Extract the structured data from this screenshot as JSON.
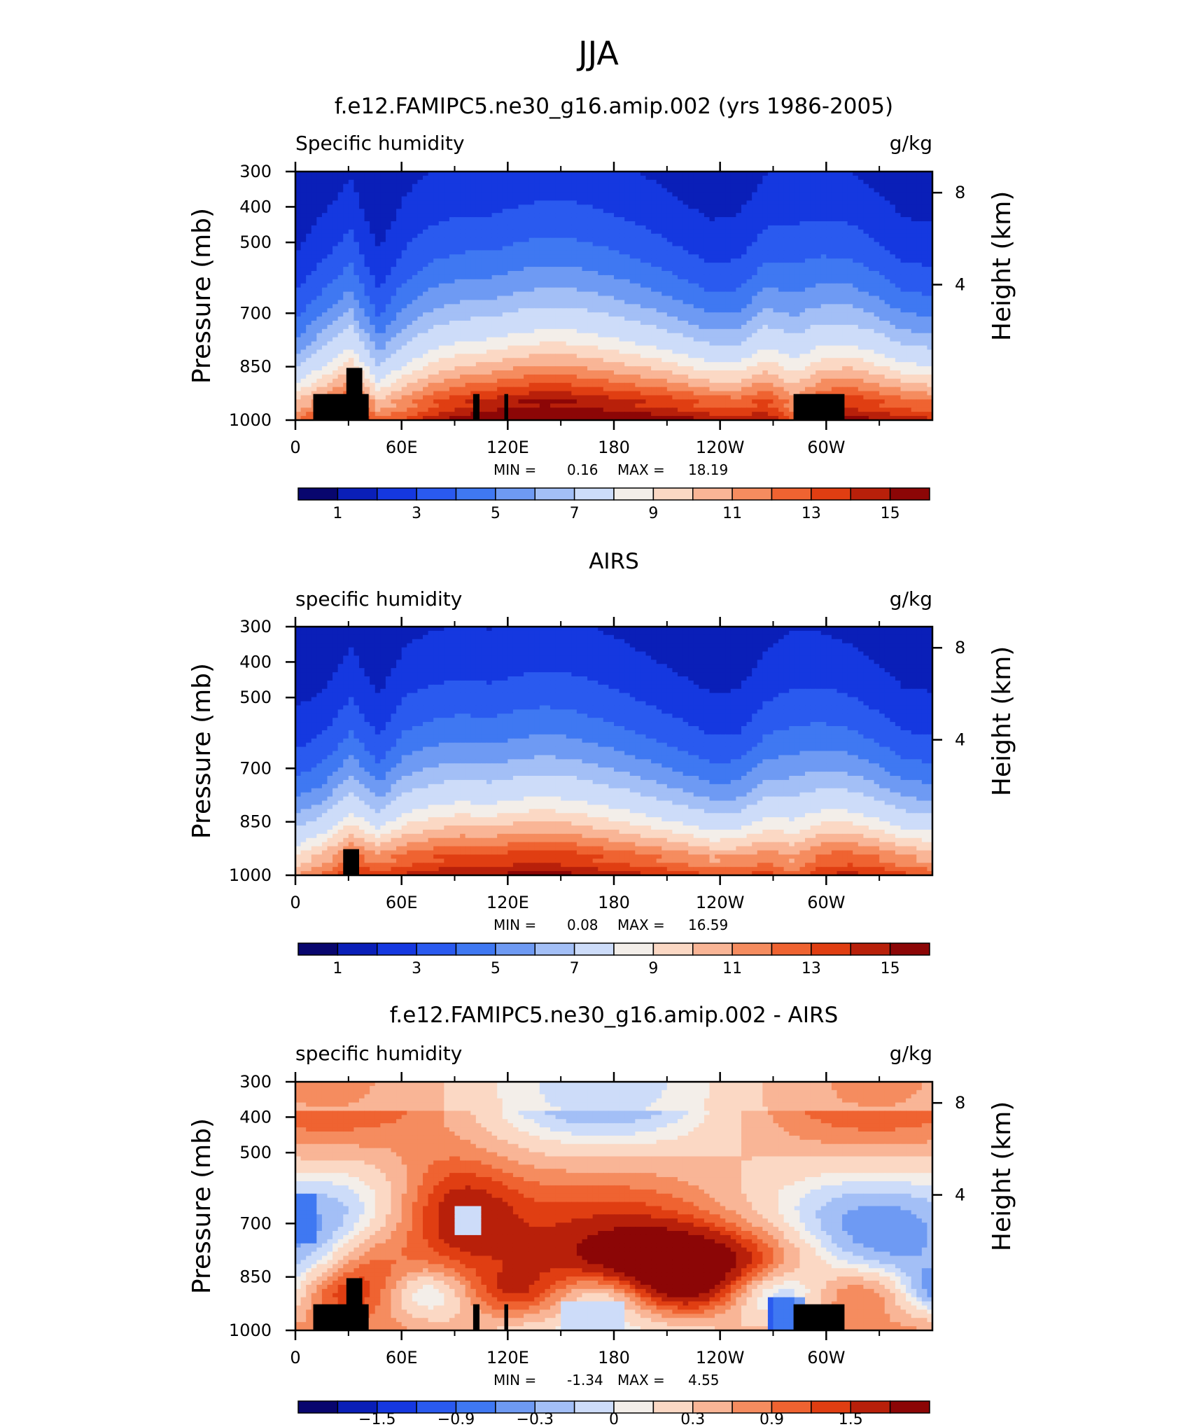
{
  "figure": {
    "title": "JJA"
  },
  "chart_data": [
    {
      "type": "heatmap",
      "title": "f.e12.FAMIPC5.ne30_g16.amip.002 (yrs 1986-2005)",
      "left_subtitle": "Specific humidity",
      "right_subtitle": "g/kg",
      "ylabel": "Pressure (mb)",
      "ylabel_right": "Height (km)",
      "x_ticks": [
        "0",
        "60E",
        "120E",
        "180",
        "120W",
        "60W"
      ],
      "y_ticks": [
        "300",
        "400",
        "500",
        "700",
        "850",
        "1000"
      ],
      "y_right_ticks": [
        "8",
        "4"
      ],
      "min_label": "MIN =",
      "min_value": "0.16",
      "max_label": "MAX =",
      "max_value": "18.19",
      "colorbar": {
        "labels": [
          "1",
          "3",
          "5",
          "7",
          "9",
          "11",
          "13",
          "15"
        ],
        "colors": [
          "#08066e",
          "#0a1fb8",
          "#1538e0",
          "#2a5aef",
          "#3f78f2",
          "#6e9af3",
          "#a3bff6",
          "#cddcf9",
          "#f3eee9",
          "#fbd8c4",
          "#f9b596",
          "#f58c5f",
          "#ef6331",
          "#e03e12",
          "#b8200a",
          "#8c0606"
        ]
      },
      "orography": true
    },
    {
      "type": "heatmap",
      "title": "AIRS",
      "left_subtitle": "specific humidity",
      "right_subtitle": "g/kg",
      "ylabel": "Pressure (mb)",
      "ylabel_right": "Height (km)",
      "x_ticks": [
        "0",
        "60E",
        "120E",
        "180",
        "120W",
        "60W"
      ],
      "y_ticks": [
        "300",
        "400",
        "500",
        "700",
        "850",
        "1000"
      ],
      "y_right_ticks": [
        "8",
        "4"
      ],
      "min_label": "MIN =",
      "min_value": "0.08",
      "max_label": "MAX =",
      "max_value": "16.59",
      "colorbar": {
        "labels": [
          "1",
          "3",
          "5",
          "7",
          "9",
          "11",
          "13",
          "15"
        ],
        "colors": [
          "#08066e",
          "#0a1fb8",
          "#1538e0",
          "#2a5aef",
          "#3f78f2",
          "#6e9af3",
          "#a3bff6",
          "#cddcf9",
          "#f3eee9",
          "#fbd8c4",
          "#f9b596",
          "#f58c5f",
          "#ef6331",
          "#e03e12",
          "#b8200a",
          "#8c0606"
        ]
      },
      "orography": false
    },
    {
      "type": "heatmap",
      "title": "f.e12.FAMIPC5.ne30_g16.amip.002 - AIRS",
      "left_subtitle": "specific humidity",
      "right_subtitle": "g/kg",
      "ylabel": "Pressure (mb)",
      "ylabel_right": "Height (km)",
      "x_ticks": [
        "0",
        "60E",
        "120E",
        "180",
        "120W",
        "60W"
      ],
      "y_ticks": [
        "300",
        "400",
        "500",
        "700",
        "850",
        "1000"
      ],
      "y_right_ticks": [
        "8",
        "4"
      ],
      "min_label": "MIN =",
      "min_value": "-1.34",
      "max_label": "MAX =",
      "max_value": "4.55",
      "colorbar": {
        "labels": [
          "−1.5",
          "−0.9",
          "−0.3",
          "0",
          "0.3",
          "0.9",
          "1.5"
        ],
        "colors": [
          "#08066e",
          "#0a1fb8",
          "#1538e0",
          "#2a5aef",
          "#3f78f2",
          "#6e9af3",
          "#a3bff6",
          "#cddcf9",
          "#f3eee9",
          "#fbd8c4",
          "#f9b596",
          "#f58c5f",
          "#ef6331",
          "#e03e12",
          "#b8200a",
          "#8c0606"
        ]
      },
      "orography": true
    }
  ]
}
